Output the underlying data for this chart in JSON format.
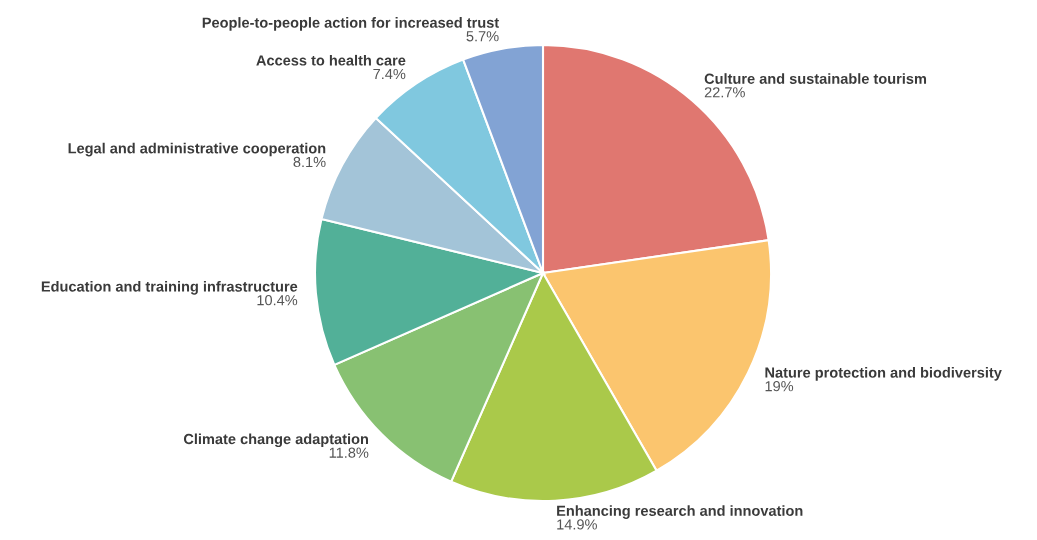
{
  "chart_data": {
    "type": "pie",
    "categories": [
      "Culture and sustainable tourism",
      "Nature protection and biodiversity",
      "Enhancing research and innovation",
      "Climate change adaptation",
      "Education and training infrastructure",
      "Legal and administrative cooperation",
      "Access to health care",
      "People-to-people action for increased trust"
    ],
    "values": [
      22.7,
      19,
      14.9,
      11.8,
      10.4,
      8.1,
      7.4,
      5.7
    ],
    "value_labels": [
      "22.7%",
      "19%",
      "14.9%",
      "11.8%",
      "10.4%",
      "8.1%",
      "7.4%",
      "5.7%"
    ],
    "colors": [
      "#e07770",
      "#fbc56e",
      "#aac94a",
      "#88c172",
      "#52b098",
      "#a3c4d8",
      "#80c8df",
      "#82a3d4"
    ],
    "legend": false
  }
}
